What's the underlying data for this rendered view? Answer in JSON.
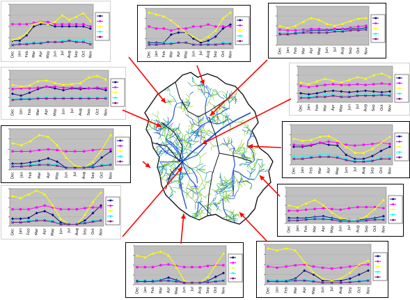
{
  "colors": {
    "plot_area": "#c0c0c0",
    "map_fill": "#ffffff",
    "map_outline": "#111111",
    "arrow": "#ff0000",
    "stream_blue": "#1f4fd6",
    "stream_teal": "#1aa39a",
    "stream_green": "#8bcf2a",
    "series": [
      "#000080",
      "#ff00ff",
      "#ffff00",
      "#00ffff",
      "#800080"
    ]
  },
  "series_markers": [
    "diamond",
    "square",
    "triangle",
    "circle",
    "x"
  ],
  "map": {
    "name": "river-basin-drainage-map"
  },
  "panels": [
    {
      "id": "top-left",
      "months": [
        "Dec",
        "Jan",
        "Feb",
        "Mar",
        "Apr",
        "May",
        "Jun",
        "Jul",
        "Aug",
        "Sep",
        "Oct",
        "Nov"
      ],
      "series": [
        [
          0.18,
          0.18,
          0.3,
          0.5,
          0.55,
          0.55,
          0.5,
          0.5,
          0.5,
          0.5,
          0.5,
          0.45
        ],
        [
          0.55,
          0.55,
          0.55,
          0.58,
          0.6,
          0.6,
          0.55,
          0.55,
          0.55,
          0.55,
          0.55,
          0.5
        ],
        [
          0.2,
          0.25,
          0.35,
          0.55,
          0.6,
          0.55,
          0.6,
          0.75,
          0.65,
          0.72,
          0.8,
          0.62
        ],
        [
          0.1,
          0.12,
          0.12,
          0.15,
          0.15,
          0.15,
          0.15,
          0.18,
          0.2,
          0.18,
          0.2,
          0.15
        ],
        [
          0.08,
          0.1,
          0.1,
          0.12,
          0.12,
          0.15,
          0.15,
          0.15,
          0.18,
          0.15,
          0.15,
          0.1
        ]
      ]
    },
    {
      "id": "top-center",
      "months": [
        "Dec",
        "Jan",
        "Feb",
        "Mar",
        "Apr",
        "May",
        "Jun",
        "Jul",
        "Aug",
        "Sep",
        "Oct",
        "Nov"
      ],
      "series": [
        [
          0.15,
          0.15,
          0.15,
          0.35,
          0.4,
          0.4,
          0.25,
          0.15,
          0.2,
          0.3,
          0.5,
          0.6
        ],
        [
          0.55,
          0.5,
          0.5,
          0.45,
          0.5,
          0.5,
          0.55,
          0.55,
          0.6,
          0.55,
          0.55,
          0.55
        ],
        [
          0.9,
          0.85,
          0.8,
          0.7,
          0.55,
          0.4,
          0.3,
          0.2,
          0.3,
          0.45,
          0.75,
          0.9
        ],
        [
          0.12,
          0.12,
          0.15,
          0.15,
          0.15,
          0.15,
          0.1,
          0.1,
          0.12,
          0.12,
          0.15,
          0.15
        ],
        [
          0.1,
          0.1,
          0.12,
          0.12,
          0.15,
          0.15,
          0.1,
          0.1,
          0.1,
          0.1,
          0.12,
          0.12
        ]
      ]
    },
    {
      "id": "top-right",
      "months": [
        "Dec",
        "Jan",
        "Feb",
        "Mar",
        "Apr",
        "May",
        "Jun",
        "Jul",
        "Aug",
        "Sep",
        "Oct",
        "Nov"
      ],
      "series": [
        [
          0.3,
          0.3,
          0.32,
          0.35,
          0.38,
          0.38,
          0.38,
          0.4,
          0.4,
          0.42,
          0.42,
          0.45
        ],
        [
          0.4,
          0.38,
          0.38,
          0.4,
          0.42,
          0.42,
          0.4,
          0.42,
          0.42,
          0.45,
          0.48,
          0.5
        ],
        [
          0.5,
          0.45,
          0.5,
          0.6,
          0.7,
          0.65,
          0.55,
          0.5,
          0.55,
          0.62,
          0.68,
          0.7
        ],
        [
          0.3,
          0.3,
          0.32,
          0.35,
          0.35,
          0.35,
          0.35,
          0.38,
          0.38,
          0.4,
          0.4,
          0.42
        ],
        [
          0.28,
          0.28,
          0.3,
          0.32,
          0.32,
          0.32,
          0.32,
          0.35,
          0.35,
          0.38,
          0.38,
          0.4
        ]
      ]
    },
    {
      "id": "left-upper",
      "months": [
        "Dec",
        "Jan",
        "Feb",
        "Mar",
        "Apr",
        "May",
        "Jun",
        "Jul",
        "Aug",
        "Sep",
        "Oct",
        "Nov"
      ],
      "series": [
        [
          0.35,
          0.3,
          0.38,
          0.48,
          0.55,
          0.5,
          0.45,
          0.5,
          0.48,
          0.5,
          0.5,
          0.45
        ],
        [
          0.48,
          0.5,
          0.5,
          0.52,
          0.55,
          0.55,
          0.52,
          0.52,
          0.52,
          0.5,
          0.52,
          0.5
        ],
        [
          0.6,
          0.55,
          0.58,
          0.7,
          0.72,
          0.65,
          0.6,
          0.62,
          0.65,
          0.8,
          0.85,
          0.75
        ],
        [
          0.2,
          0.22,
          0.22,
          0.25,
          0.25,
          0.25,
          0.25,
          0.25,
          0.25,
          0.25,
          0.25,
          0.25
        ],
        [
          0.18,
          0.2,
          0.2,
          0.22,
          0.22,
          0.22,
          0.22,
          0.22,
          0.22,
          0.22,
          0.22,
          0.22
        ]
      ]
    },
    {
      "id": "right-upper",
      "months": [
        "Dec",
        "Jan",
        "Feb",
        "Mar",
        "Apr",
        "May",
        "Jun",
        "Jul",
        "Aug",
        "Sep",
        "Oct",
        "Nov"
      ],
      "series": [
        [
          0.25,
          0.22,
          0.25,
          0.3,
          0.32,
          0.3,
          0.28,
          0.3,
          0.32,
          0.3,
          0.28,
          0.3
        ],
        [
          0.45,
          0.42,
          0.45,
          0.48,
          0.5,
          0.48,
          0.48,
          0.5,
          0.48,
          0.5,
          0.52,
          0.5
        ],
        [
          0.55,
          0.5,
          0.58,
          0.65,
          0.6,
          0.55,
          0.62,
          0.7,
          0.65,
          0.75,
          0.8,
          0.7
        ],
        [
          0.15,
          0.15,
          0.18,
          0.2,
          0.2,
          0.18,
          0.18,
          0.2,
          0.2,
          0.2,
          0.22,
          0.2
        ],
        [
          0.12,
          0.12,
          0.15,
          0.15,
          0.18,
          0.15,
          0.15,
          0.18,
          0.18,
          0.18,
          0.2,
          0.18
        ]
      ]
    },
    {
      "id": "left-middle",
      "months": [
        "Dec",
        "Jan",
        "Feb",
        "Mar",
        "Apr",
        "May",
        "Jun",
        "Jul",
        "Aug",
        "Sep",
        "Oct",
        "Nov"
      ],
      "series": [
        [
          0.15,
          0.15,
          0.18,
          0.22,
          0.28,
          0.2,
          0.05,
          0.05,
          0.05,
          0.1,
          0.3,
          0.45
        ],
        [
          0.45,
          0.45,
          0.45,
          0.48,
          0.5,
          0.48,
          0.45,
          0.45,
          0.45,
          0.48,
          0.5,
          0.5
        ],
        [
          0.65,
          0.6,
          0.7,
          0.85,
          0.8,
          0.6,
          0.3,
          0.1,
          0.05,
          0.2,
          0.5,
          0.85
        ],
        [
          0.1,
          0.1,
          0.12,
          0.15,
          0.15,
          0.12,
          0.05,
          0.05,
          0.05,
          0.08,
          0.12,
          0.15
        ],
        [
          0.08,
          0.08,
          0.1,
          0.12,
          0.12,
          0.1,
          0.05,
          0.05,
          0.05,
          0.06,
          0.1,
          0.12
        ]
      ]
    },
    {
      "id": "right-middle",
      "months": [
        "Dec",
        "Jan",
        "Feb",
        "Mar",
        "Apr",
        "May",
        "Jun",
        "Jul",
        "Aug",
        "Sep",
        "Oct",
        "Nov"
      ],
      "series": [
        [
          0.45,
          0.45,
          0.48,
          0.55,
          0.5,
          0.48,
          0.25,
          0.15,
          0.15,
          0.22,
          0.35,
          0.45
        ],
        [
          0.5,
          0.48,
          0.5,
          0.55,
          0.58,
          0.55,
          0.5,
          0.48,
          0.5,
          0.52,
          0.55,
          0.52
        ],
        [
          0.65,
          0.6,
          0.62,
          0.7,
          0.72,
          0.6,
          0.45,
          0.3,
          0.3,
          0.4,
          0.55,
          0.7
        ],
        [
          0.2,
          0.2,
          0.22,
          0.25,
          0.25,
          0.22,
          0.15,
          0.1,
          0.1,
          0.12,
          0.18,
          0.2
        ],
        [
          0.15,
          0.15,
          0.18,
          0.2,
          0.2,
          0.18,
          0.12,
          0.08,
          0.08,
          0.1,
          0.15,
          0.15
        ]
      ]
    },
    {
      "id": "left-lower",
      "months": [
        "Dec",
        "Jan",
        "Feb",
        "Mar",
        "Apr",
        "May",
        "Jun",
        "Jul",
        "Aug",
        "Sep",
        "Oct",
        "Nov"
      ],
      "series": [
        [
          0.2,
          0.2,
          0.22,
          0.35,
          0.4,
          0.3,
          0.1,
          0.05,
          0.05,
          0.15,
          0.35,
          0.55
        ],
        [
          0.45,
          0.45,
          0.45,
          0.5,
          0.55,
          0.5,
          0.45,
          0.45,
          0.45,
          0.48,
          0.5,
          0.5
        ],
        [
          0.8,
          0.75,
          0.85,
          0.95,
          0.85,
          0.55,
          0.2,
          0.05,
          0.05,
          0.3,
          0.65,
          0.9
        ],
        [
          0.12,
          0.12,
          0.15,
          0.18,
          0.18,
          0.15,
          0.05,
          0.05,
          0.05,
          0.1,
          0.15,
          0.18
        ],
        [
          0.1,
          0.1,
          0.12,
          0.15,
          0.15,
          0.12,
          0.05,
          0.05,
          0.05,
          0.08,
          0.12,
          0.15
        ]
      ]
    },
    {
      "id": "right-lower",
      "months": [
        "Dec",
        "Jan",
        "Feb",
        "Mar",
        "Apr",
        "May",
        "Jun",
        "Jul",
        "Aug",
        "Sep",
        "Oct",
        "Nov"
      ],
      "series": [
        [
          0.15,
          0.15,
          0.15,
          0.18,
          0.2,
          0.15,
          0.1,
          0.1,
          0.1,
          0.12,
          0.15,
          0.2
        ],
        [
          0.35,
          0.35,
          0.38,
          0.4,
          0.42,
          0.4,
          0.38,
          0.42,
          0.45,
          0.45,
          0.45,
          0.42
        ],
        [
          0.5,
          0.45,
          0.55,
          0.65,
          0.5,
          0.3,
          0.15,
          0.1,
          0.1,
          0.2,
          0.4,
          0.65
        ],
        [
          0.1,
          0.1,
          0.12,
          0.15,
          0.15,
          0.12,
          0.08,
          0.08,
          0.08,
          0.1,
          0.12,
          0.12
        ],
        [
          0.08,
          0.08,
          0.1,
          0.12,
          0.12,
          0.1,
          0.06,
          0.06,
          0.06,
          0.08,
          0.1,
          0.1
        ]
      ]
    },
    {
      "id": "bottom-center",
      "months": [
        "Dec",
        "Jan",
        "Feb",
        "Mar",
        "Apr",
        "May",
        "Jun",
        "Jul",
        "Aug",
        "Sep",
        "Oct",
        "Nov"
      ],
      "series": [
        [
          0.1,
          0.1,
          0.1,
          0.12,
          0.18,
          0.12,
          0.05,
          0.05,
          0.05,
          0.1,
          0.2,
          0.3
        ],
        [
          0.45,
          0.45,
          0.45,
          0.5,
          0.52,
          0.48,
          0.45,
          0.45,
          0.45,
          0.48,
          0.5,
          0.5
        ],
        [
          0.75,
          0.7,
          0.8,
          0.85,
          0.75,
          0.45,
          0.1,
          0.05,
          0.05,
          0.2,
          0.5,
          0.8
        ],
        [
          0.1,
          0.1,
          0.1,
          0.12,
          0.12,
          0.1,
          0.05,
          0.05,
          0.05,
          0.08,
          0.1,
          0.12
        ],
        [
          0.08,
          0.08,
          0.08,
          0.1,
          0.1,
          0.08,
          0.05,
          0.05,
          0.05,
          0.06,
          0.08,
          0.1
        ]
      ]
    },
    {
      "id": "bottom-right",
      "months": [
        "Dec",
        "Jan",
        "Feb",
        "Mar",
        "Apr",
        "May",
        "Jun",
        "Jul",
        "Aug",
        "Sep",
        "Oct",
        "Nov"
      ],
      "series": [
        [
          0.1,
          0.1,
          0.1,
          0.15,
          0.35,
          0.25,
          0.1,
          0.1,
          0.1,
          0.15,
          0.25,
          0.35
        ],
        [
          0.45,
          0.42,
          0.45,
          0.48,
          0.5,
          0.45,
          0.42,
          0.4,
          0.42,
          0.45,
          0.48,
          0.5
        ],
        [
          0.9,
          0.85,
          0.9,
          0.85,
          0.55,
          0.3,
          0.15,
          0.1,
          0.15,
          0.3,
          0.5,
          0.6
        ],
        [
          0.1,
          0.1,
          0.1,
          0.12,
          0.12,
          0.1,
          0.05,
          0.05,
          0.05,
          0.08,
          0.1,
          0.12
        ],
        [
          0.08,
          0.08,
          0.08,
          0.1,
          0.1,
          0.08,
          0.05,
          0.05,
          0.05,
          0.06,
          0.08,
          0.1
        ]
      ]
    }
  ]
}
